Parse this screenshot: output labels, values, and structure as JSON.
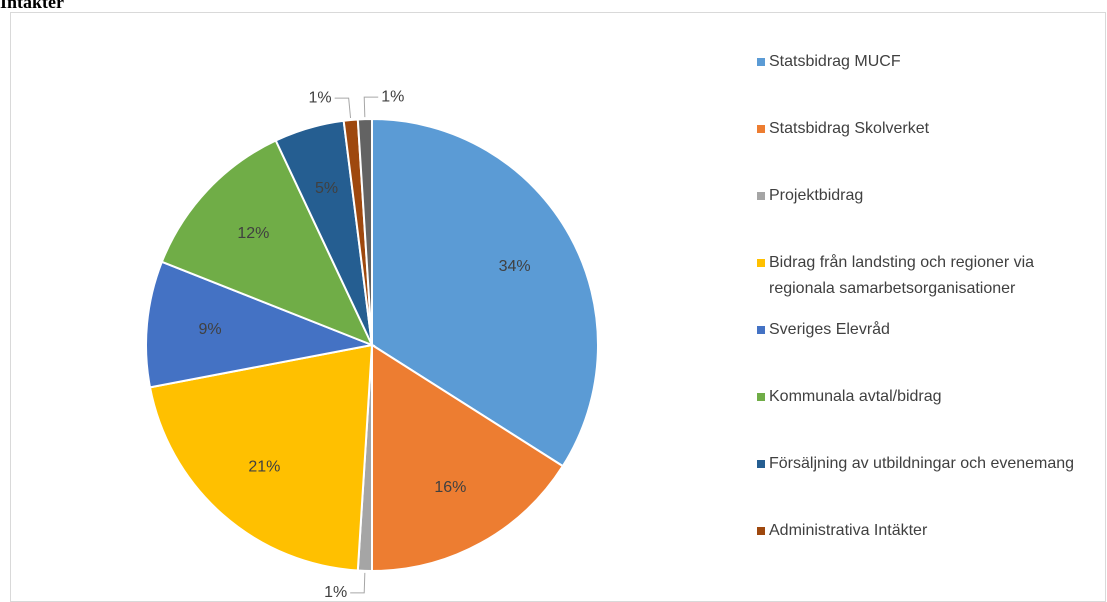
{
  "chart_data": {
    "type": "pie",
    "title": "Intäkter",
    "categories": [
      "Statsbidrag MUCF",
      "Statsbidrag Skolverket",
      "Projektbidrag",
      "Bidrag från landsting och regioner via regionala samarbetsorganisationer",
      "Sveriges Elevråd",
      "Kommunala avtal/bidrag",
      "Försäljning av utbildningar och evenemang",
      "Administrativa Intäkter",
      null
    ],
    "values": [
      34,
      16,
      1,
      21,
      9,
      12,
      5,
      1,
      1
    ],
    "value_labels": [
      "34%",
      "16%",
      "1%",
      "21%",
      "9%",
      "12%",
      "5%",
      "1%",
      "1%"
    ],
    "colors": [
      "#5b9bd5",
      "#ed7d31",
      "#a5a5a5",
      "#ffc000",
      "#4472c4",
      "#70ad47",
      "#255e91",
      "#9e480e",
      "#636363"
    ],
    "legend": "right"
  }
}
